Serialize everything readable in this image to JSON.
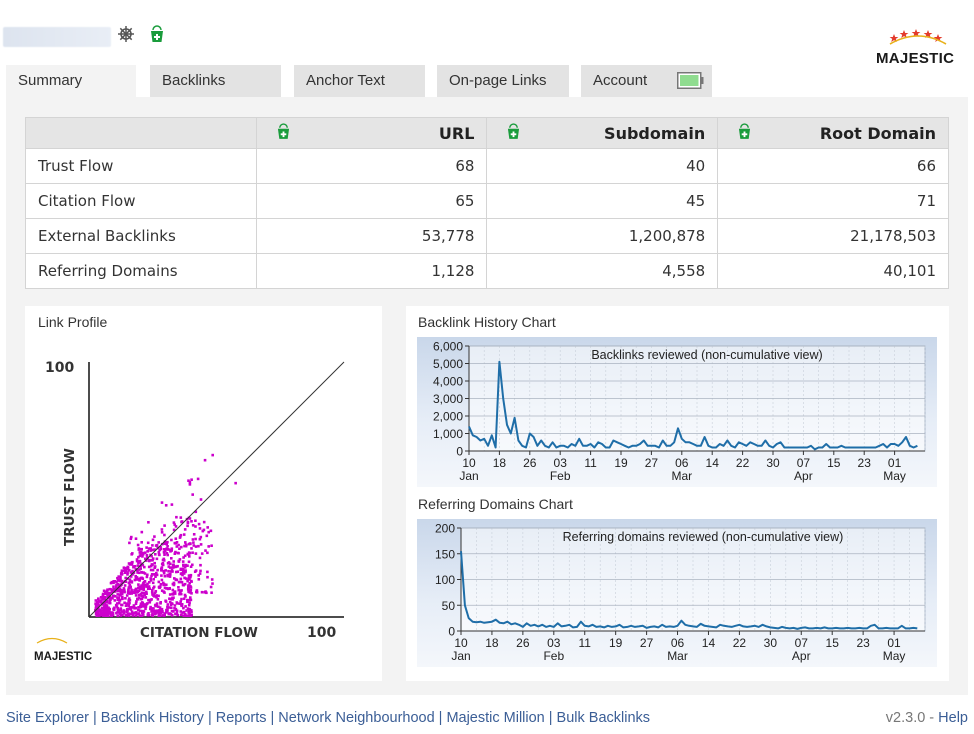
{
  "header": {
    "gear_icon": "ship-wheel-icon",
    "bucket_icon": "bucket-icon",
    "brand": "MAJESTIC"
  },
  "tabs": [
    {
      "label": "Summary",
      "active": true
    },
    {
      "label": "Backlinks",
      "active": false
    },
    {
      "label": "Anchor Text",
      "active": false
    },
    {
      "label": "On-page Links",
      "active": false
    },
    {
      "label": "Account",
      "active": false
    }
  ],
  "table": {
    "columns": [
      "URL",
      "Subdomain",
      "Root Domain"
    ],
    "rows": [
      {
        "label": "Trust Flow",
        "values": [
          "68",
          "40",
          "66"
        ]
      },
      {
        "label": "Citation Flow",
        "values": [
          "65",
          "45",
          "71"
        ]
      },
      {
        "label": "External Backlinks",
        "values": [
          "53,778",
          "1,200,878",
          "21,178,503"
        ]
      },
      {
        "label": "Referring Domains",
        "values": [
          "1,128",
          "4,558",
          "40,101"
        ]
      }
    ]
  },
  "link_profile": {
    "title": "Link Profile",
    "y_max_label": "100",
    "x_max_label": "100",
    "ylabel": "TRUST FLOW",
    "xlabel": "CITATION FLOW",
    "logo": "MAJESTIC",
    "point_color": "#cc00cc"
  },
  "backlink_history": {
    "title": "Backlink History Chart",
    "line_color": "#1f6ea8"
  },
  "referring_history": {
    "title": "Referring Domains Chart",
    "line_color": "#1f6ea8"
  },
  "chart_data": [
    {
      "type": "scatter",
      "title": "",
      "xlabel": "CITATION FLOW",
      "ylabel": "TRUST FLOW",
      "xlim": [
        0,
        100
      ],
      "ylim": [
        0,
        100
      ],
      "color": "#cc00cc",
      "diagonal": true,
      "clusters": [
        {
          "x": [
            2,
            40
          ],
          "y": [
            1,
            30
          ],
          "density": "high"
        },
        {
          "x": [
            10,
            48
          ],
          "y": [
            10,
            40
          ],
          "density": "medium"
        },
        {
          "x": [
            15,
            45
          ],
          "y": [
            25,
            55
          ],
          "density": "low"
        }
      ],
      "outliers": [
        [
          45,
          62
        ],
        [
          48,
          64
        ],
        [
          57,
          53
        ]
      ]
    },
    {
      "type": "line",
      "title": "Backlinks reviewed (non-cumulative view)",
      "ylim": [
        0,
        6000
      ],
      "y_ticks": [
        "0",
        "1,000",
        "2,000",
        "3,000",
        "4,000",
        "5,000",
        "6,000"
      ],
      "x_ticks": [
        "10",
        "18",
        "26",
        "03",
        "11",
        "19",
        "27",
        "06",
        "14",
        "22",
        "30",
        "07",
        "15",
        "23",
        "01"
      ],
      "x_tick_days": [
        0,
        8,
        16,
        24,
        32,
        40,
        48,
        56,
        64,
        72,
        80,
        88,
        96,
        104,
        112
      ],
      "x_month_labels": [
        {
          "label": "Jan",
          "day": 0
        },
        {
          "label": "Feb",
          "day": 24
        },
        {
          "label": "Mar",
          "day": 56
        },
        {
          "label": "Apr",
          "day": 88
        },
        {
          "label": "May",
          "day": 112
        }
      ],
      "x_range": [
        0,
        120
      ],
      "grid": true,
      "values": [
        1400,
        900,
        800,
        600,
        700,
        300,
        900,
        200,
        5100,
        3000,
        1500,
        1000,
        1900,
        600,
        300,
        200,
        1000,
        800,
        300,
        600,
        300,
        200,
        500,
        200,
        300,
        300,
        200,
        400,
        300,
        700,
        300,
        300,
        400,
        200,
        500,
        400,
        200,
        200,
        600,
        500,
        400,
        300,
        200,
        300,
        300,
        400,
        600,
        300,
        300,
        300,
        200,
        600,
        300,
        300,
        500,
        1300,
        700,
        500,
        500,
        400,
        300,
        300,
        800,
        300,
        200,
        200,
        400,
        300,
        600,
        300,
        200,
        500,
        400,
        300,
        500,
        400,
        300,
        300,
        600,
        300,
        200,
        400,
        500,
        200,
        200,
        200,
        200,
        200,
        200,
        200,
        300,
        100,
        200,
        200,
        400,
        200,
        200,
        200,
        300,
        200,
        200,
        200,
        200,
        200,
        200,
        200,
        200,
        200,
        300,
        400,
        200,
        400,
        400,
        300,
        500,
        800,
        300,
        200,
        300
      ]
    },
    {
      "type": "line",
      "title": "Referring domains reviewed (non-cumulative view)",
      "ylim": [
        0,
        200
      ],
      "y_ticks": [
        "0",
        "50",
        "100",
        "150",
        "200"
      ],
      "x_ticks": [
        "10",
        "18",
        "26",
        "03",
        "11",
        "19",
        "27",
        "06",
        "14",
        "22",
        "30",
        "07",
        "15",
        "23",
        "01"
      ],
      "x_tick_days": [
        0,
        8,
        16,
        24,
        32,
        40,
        48,
        56,
        64,
        72,
        80,
        88,
        96,
        104,
        112
      ],
      "x_month_labels": [
        {
          "label": "Jan",
          "day": 0
        },
        {
          "label": "Feb",
          "day": 24
        },
        {
          "label": "Mar",
          "day": 56
        },
        {
          "label": "Apr",
          "day": 88
        },
        {
          "label": "May",
          "day": 112
        }
      ],
      "x_range": [
        0,
        120
      ],
      "grid": true,
      "values": [
        155,
        50,
        25,
        18,
        17,
        18,
        16,
        17,
        18,
        22,
        16,
        15,
        18,
        13,
        15,
        12,
        8,
        15,
        10,
        12,
        9,
        12,
        8,
        10,
        8,
        15,
        9,
        10,
        12,
        7,
        8,
        18,
        10,
        9,
        12,
        8,
        9,
        7,
        10,
        8,
        9,
        12,
        7,
        8,
        10,
        8,
        9,
        10,
        6,
        8,
        9,
        7,
        12,
        8,
        9,
        8,
        10,
        20,
        12,
        10,
        9,
        8,
        14,
        10,
        9,
        8,
        7,
        12,
        10,
        9,
        8,
        10,
        12,
        9,
        8,
        9,
        10,
        8,
        12,
        9,
        7,
        6,
        5,
        8,
        6,
        5,
        6,
        4,
        6,
        7,
        5,
        5,
        6,
        5,
        7,
        5,
        5,
        6,
        5,
        5,
        6,
        5,
        5,
        6,
        5,
        5,
        10,
        12,
        5,
        5,
        6,
        5,
        5,
        5,
        10,
        5,
        5,
        6,
        5
      ]
    }
  ]
}
